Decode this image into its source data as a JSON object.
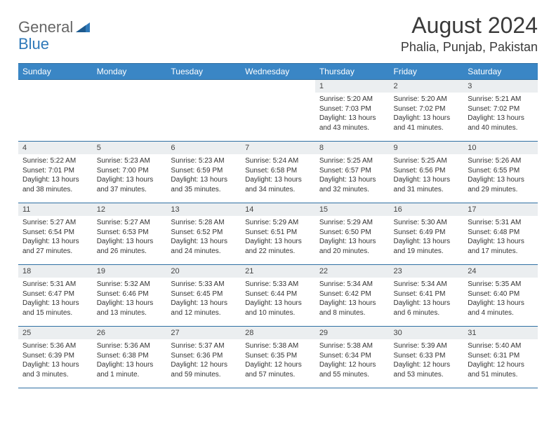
{
  "brand": {
    "general": "General",
    "blue": "Blue"
  },
  "colors": {
    "header_bg": "#3a86c5",
    "header_text": "#ffffff",
    "row_divider": "#2f6fa3",
    "daynum_bg": "#ebeef0",
    "daynum_text": "#444444",
    "body_text": "#333333",
    "title_text": "#3a3a3a",
    "logo_gray": "#666666",
    "logo_blue": "#2f79b9",
    "page_bg": "#ffffff"
  },
  "typography": {
    "title_fontsize_pt": 24,
    "location_fontsize_pt": 14,
    "dayheader_fontsize_pt": 9,
    "daynum_fontsize_pt": 8,
    "info_fontsize_pt": 7.5
  },
  "title": "August 2024",
  "location": "Phalia, Punjab, Pakistan",
  "day_names": [
    "Sunday",
    "Monday",
    "Tuesday",
    "Wednesday",
    "Thursday",
    "Friday",
    "Saturday"
  ],
  "first_weekday_index": 4,
  "days": [
    {
      "n": 1,
      "sunrise": "5:20 AM",
      "sunset": "7:03 PM",
      "daylight": "13 hours and 43 minutes."
    },
    {
      "n": 2,
      "sunrise": "5:20 AM",
      "sunset": "7:02 PM",
      "daylight": "13 hours and 41 minutes."
    },
    {
      "n": 3,
      "sunrise": "5:21 AM",
      "sunset": "7:02 PM",
      "daylight": "13 hours and 40 minutes."
    },
    {
      "n": 4,
      "sunrise": "5:22 AM",
      "sunset": "7:01 PM",
      "daylight": "13 hours and 38 minutes."
    },
    {
      "n": 5,
      "sunrise": "5:23 AM",
      "sunset": "7:00 PM",
      "daylight": "13 hours and 37 minutes."
    },
    {
      "n": 6,
      "sunrise": "5:23 AM",
      "sunset": "6:59 PM",
      "daylight": "13 hours and 35 minutes."
    },
    {
      "n": 7,
      "sunrise": "5:24 AM",
      "sunset": "6:58 PM",
      "daylight": "13 hours and 34 minutes."
    },
    {
      "n": 8,
      "sunrise": "5:25 AM",
      "sunset": "6:57 PM",
      "daylight": "13 hours and 32 minutes."
    },
    {
      "n": 9,
      "sunrise": "5:25 AM",
      "sunset": "6:56 PM",
      "daylight": "13 hours and 31 minutes."
    },
    {
      "n": 10,
      "sunrise": "5:26 AM",
      "sunset": "6:55 PM",
      "daylight": "13 hours and 29 minutes."
    },
    {
      "n": 11,
      "sunrise": "5:27 AM",
      "sunset": "6:54 PM",
      "daylight": "13 hours and 27 minutes."
    },
    {
      "n": 12,
      "sunrise": "5:27 AM",
      "sunset": "6:53 PM",
      "daylight": "13 hours and 26 minutes."
    },
    {
      "n": 13,
      "sunrise": "5:28 AM",
      "sunset": "6:52 PM",
      "daylight": "13 hours and 24 minutes."
    },
    {
      "n": 14,
      "sunrise": "5:29 AM",
      "sunset": "6:51 PM",
      "daylight": "13 hours and 22 minutes."
    },
    {
      "n": 15,
      "sunrise": "5:29 AM",
      "sunset": "6:50 PM",
      "daylight": "13 hours and 20 minutes."
    },
    {
      "n": 16,
      "sunrise": "5:30 AM",
      "sunset": "6:49 PM",
      "daylight": "13 hours and 19 minutes."
    },
    {
      "n": 17,
      "sunrise": "5:31 AM",
      "sunset": "6:48 PM",
      "daylight": "13 hours and 17 minutes."
    },
    {
      "n": 18,
      "sunrise": "5:31 AM",
      "sunset": "6:47 PM",
      "daylight": "13 hours and 15 minutes."
    },
    {
      "n": 19,
      "sunrise": "5:32 AM",
      "sunset": "6:46 PM",
      "daylight": "13 hours and 13 minutes."
    },
    {
      "n": 20,
      "sunrise": "5:33 AM",
      "sunset": "6:45 PM",
      "daylight": "13 hours and 12 minutes."
    },
    {
      "n": 21,
      "sunrise": "5:33 AM",
      "sunset": "6:44 PM",
      "daylight": "13 hours and 10 minutes."
    },
    {
      "n": 22,
      "sunrise": "5:34 AM",
      "sunset": "6:42 PM",
      "daylight": "13 hours and 8 minutes."
    },
    {
      "n": 23,
      "sunrise": "5:34 AM",
      "sunset": "6:41 PM",
      "daylight": "13 hours and 6 minutes."
    },
    {
      "n": 24,
      "sunrise": "5:35 AM",
      "sunset": "6:40 PM",
      "daylight": "13 hours and 4 minutes."
    },
    {
      "n": 25,
      "sunrise": "5:36 AM",
      "sunset": "6:39 PM",
      "daylight": "13 hours and 3 minutes."
    },
    {
      "n": 26,
      "sunrise": "5:36 AM",
      "sunset": "6:38 PM",
      "daylight": "13 hours and 1 minute."
    },
    {
      "n": 27,
      "sunrise": "5:37 AM",
      "sunset": "6:36 PM",
      "daylight": "12 hours and 59 minutes."
    },
    {
      "n": 28,
      "sunrise": "5:38 AM",
      "sunset": "6:35 PM",
      "daylight": "12 hours and 57 minutes."
    },
    {
      "n": 29,
      "sunrise": "5:38 AM",
      "sunset": "6:34 PM",
      "daylight": "12 hours and 55 minutes."
    },
    {
      "n": 30,
      "sunrise": "5:39 AM",
      "sunset": "6:33 PM",
      "daylight": "12 hours and 53 minutes."
    },
    {
      "n": 31,
      "sunrise": "5:40 AM",
      "sunset": "6:31 PM",
      "daylight": "12 hours and 51 minutes."
    }
  ],
  "labels": {
    "sunrise": "Sunrise:",
    "sunset": "Sunset:",
    "daylight": "Daylight:"
  }
}
